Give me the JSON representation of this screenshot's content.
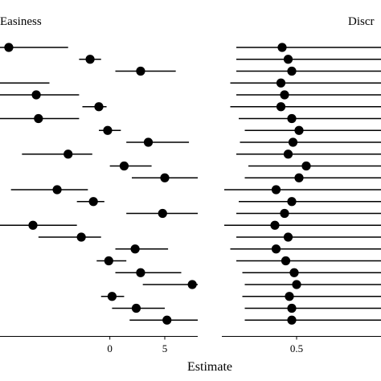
{
  "chart_data": [
    {
      "type": "forest",
      "panel": "left",
      "title": "Easiness",
      "xlim": [
        -10,
        8
      ],
      "ticks": [
        0,
        5
      ],
      "tick_labels": [
        "0",
        "5"
      ],
      "items": [
        {
          "est": -9.2,
          "lo": -12.0,
          "hi": -3.8
        },
        {
          "est": -1.8,
          "lo": -2.8,
          "hi": -0.8
        },
        {
          "est": 2.8,
          "lo": 0.5,
          "hi": 6.0
        },
        {
          "est": null,
          "lo": -12.0,
          "hi": -5.5
        },
        {
          "est": -6.7,
          "lo": -10.0,
          "hi": -2.8
        },
        {
          "est": -1.0,
          "lo": -2.5,
          "hi": -0.3
        },
        {
          "est": -6.5,
          "lo": -10.0,
          "hi": -2.8
        },
        {
          "est": -0.2,
          "lo": -1.0,
          "hi": 1.0
        },
        {
          "est": 3.5,
          "lo": 1.5,
          "hi": 7.2
        },
        {
          "est": -3.8,
          "lo": -8.0,
          "hi": -1.6
        },
        {
          "est": 1.3,
          "lo": 0.0,
          "hi": 3.8
        },
        {
          "est": 5.0,
          "lo": 2.0,
          "hi": 9.8
        },
        {
          "est": -4.8,
          "lo": -9.0,
          "hi": -2.0
        },
        {
          "est": -1.5,
          "lo": -3.0,
          "hi": -0.5
        },
        {
          "est": 4.8,
          "lo": 1.5,
          "hi": 9.5
        },
        {
          "est": -7.0,
          "lo": -11.0,
          "hi": -3.0
        },
        {
          "est": -2.6,
          "lo": -6.5,
          "hi": -0.8
        },
        {
          "est": 2.3,
          "lo": 0.5,
          "hi": 5.3
        },
        {
          "est": -0.1,
          "lo": -1.2,
          "hi": 1.5
        },
        {
          "est": 2.8,
          "lo": 0.5,
          "hi": 6.5
        },
        {
          "est": 7.5,
          "lo": 3.0,
          "hi": 14.0
        },
        {
          "est": 0.2,
          "lo": -0.8,
          "hi": 1.3
        },
        {
          "est": 2.4,
          "lo": 0.2,
          "hi": 5.0
        },
        {
          "est": 5.2,
          "lo": 1.8,
          "hi": 10.2
        }
      ]
    },
    {
      "type": "forest",
      "panel": "right",
      "title": "Discr",
      "xlim": [
        -0.12,
        1.2
      ],
      "ticks": [
        0.5
      ],
      "tick_labels": [
        "0.5"
      ],
      "items": [
        {
          "est": 0.38,
          "lo": 0.0,
          "hi": 1.2
        },
        {
          "est": 0.43,
          "lo": 0.0,
          "hi": 1.2
        },
        {
          "est": 0.46,
          "lo": 0.0,
          "hi": 1.2
        },
        {
          "est": 0.37,
          "lo": -0.05,
          "hi": 1.2
        },
        {
          "est": 0.4,
          "lo": 0.0,
          "hi": 1.2
        },
        {
          "est": 0.37,
          "lo": -0.05,
          "hi": 1.2
        },
        {
          "est": 0.46,
          "lo": 0.02,
          "hi": 1.2
        },
        {
          "est": 0.52,
          "lo": 0.07,
          "hi": 1.2
        },
        {
          "est": 0.47,
          "lo": 0.03,
          "hi": 1.2
        },
        {
          "est": 0.43,
          "lo": 0.0,
          "hi": 1.2
        },
        {
          "est": 0.58,
          "lo": 0.1,
          "hi": 1.2
        },
        {
          "est": 0.52,
          "lo": 0.07,
          "hi": 1.2
        },
        {
          "est": 0.33,
          "lo": -0.1,
          "hi": 1.2
        },
        {
          "est": 0.46,
          "lo": 0.02,
          "hi": 1.2
        },
        {
          "est": 0.4,
          "lo": 0.0,
          "hi": 1.2
        },
        {
          "est": 0.32,
          "lo": -0.1,
          "hi": 1.2
        },
        {
          "est": 0.43,
          "lo": 0.0,
          "hi": 1.2
        },
        {
          "est": 0.33,
          "lo": -0.05,
          "hi": 1.2
        },
        {
          "est": 0.41,
          "lo": 0.0,
          "hi": 1.2
        },
        {
          "est": 0.48,
          "lo": 0.05,
          "hi": 1.2
        },
        {
          "est": 0.5,
          "lo": 0.07,
          "hi": 1.2
        },
        {
          "est": 0.44,
          "lo": 0.05,
          "hi": 1.2
        },
        {
          "est": 0.46,
          "lo": 0.07,
          "hi": 1.2
        },
        {
          "est": 0.46,
          "lo": 0.07,
          "hi": 1.2
        }
      ]
    }
  ],
  "xlabel": "Estimate"
}
